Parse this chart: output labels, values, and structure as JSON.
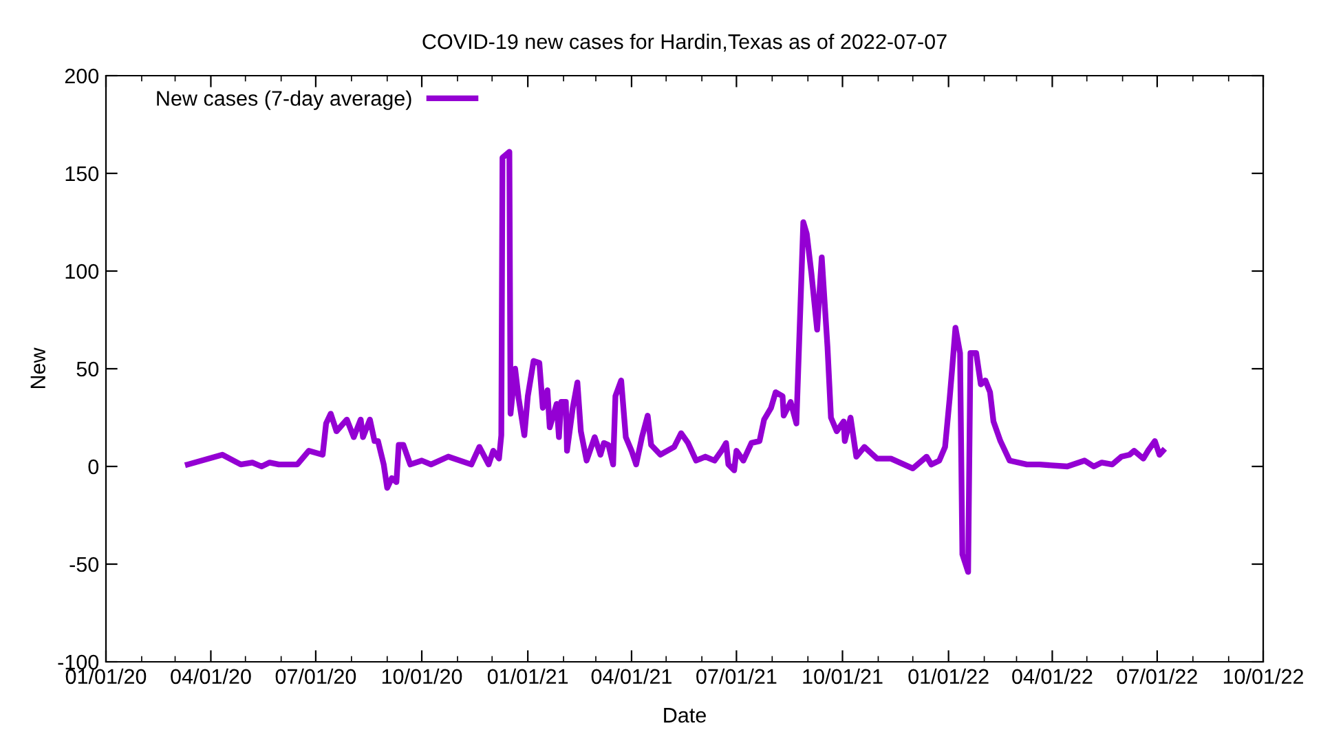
{
  "chart_data": {
    "type": "line",
    "title": "COVID-19 new cases for Hardin,Texas as of 2022-07-07",
    "xlabel": "Date",
    "ylabel": "New",
    "x": [
      "2020-03-12",
      "2020-04-11",
      "2020-04-27",
      "2020-05-07",
      "2020-05-15",
      "2020-05-22",
      "2020-05-30",
      "2020-06-15",
      "2020-06-25",
      "2020-07-07",
      "2020-07-10",
      "2020-07-14",
      "2020-07-19",
      "2020-07-28",
      "2020-08-03",
      "2020-08-09",
      "2020-08-11",
      "2020-08-17",
      "2020-08-21",
      "2020-08-24",
      "2020-08-29",
      "2020-09-01",
      "2020-09-05",
      "2020-09-09",
      "2020-09-11",
      "2020-09-15",
      "2020-09-21",
      "2020-10-01",
      "2020-10-09",
      "2020-10-24",
      "2020-11-13",
      "2020-11-20",
      "2020-11-28",
      "2020-12-02",
      "2020-12-07",
      "2020-12-09",
      "2020-12-10",
      "2020-12-16",
      "2020-12-17",
      "2020-12-21",
      "2020-12-24",
      "2020-12-29",
      "2021-01-01",
      "2021-01-06",
      "2021-01-11",
      "2021-01-14",
      "2021-01-18",
      "2021-01-20",
      "2021-01-26",
      "2021-01-28",
      "2021-01-30",
      "2021-02-03",
      "2021-02-04",
      "2021-02-09",
      "2021-02-13",
      "2021-02-16",
      "2021-02-21",
      "2021-02-28",
      "2021-03-05",
      "2021-03-08",
      "2021-03-12",
      "2021-03-16",
      "2021-03-18",
      "2021-03-23",
      "2021-03-27",
      "2021-04-01",
      "2021-04-05",
      "2021-04-10",
      "2021-04-15",
      "2021-04-18",
      "2021-04-26",
      "2021-05-08",
      "2021-05-14",
      "2021-05-20",
      "2021-05-27",
      "2021-06-04",
      "2021-06-12",
      "2021-06-18",
      "2021-06-22",
      "2021-06-24",
      "2021-06-29",
      "2021-07-01",
      "2021-07-07",
      "2021-07-14",
      "2021-07-21",
      "2021-07-25",
      "2021-07-31",
      "2021-08-04",
      "2021-08-10",
      "2021-08-11",
      "2021-08-17",
      "2021-08-22",
      "2021-08-28",
      "2021-08-31",
      "2021-09-04",
      "2021-09-09",
      "2021-09-13",
      "2021-09-18",
      "2021-09-21",
      "2021-09-26",
      "2021-10-02",
      "2021-10-03",
      "2021-10-08",
      "2021-10-13",
      "2021-10-20",
      "2021-10-31",
      "2021-11-12",
      "2021-12-01",
      "2021-12-13",
      "2021-12-17",
      "2021-12-24",
      "2021-12-29",
      "2022-01-02",
      "2022-01-04",
      "2022-01-07",
      "2022-01-11",
      "2022-01-13",
      "2022-01-18",
      "2022-01-20",
      "2022-01-25",
      "2022-01-29",
      "2022-02-02",
      "2022-02-06",
      "2022-02-09",
      "2022-02-15",
      "2022-02-23",
      "2022-03-10",
      "2022-03-21",
      "2022-04-14",
      "2022-04-29",
      "2022-05-07",
      "2022-05-14",
      "2022-05-23",
      "2022-05-31",
      "2022-06-07",
      "2022-06-11",
      "2022-06-19",
      "2022-06-23",
      "2022-06-29",
      "2022-07-03",
      "2022-07-06"
    ],
    "series": [
      {
        "name": "New cases (7-day average)",
        "color": "#9400d3",
        "values": [
          1,
          6,
          1,
          2,
          0,
          2,
          1,
          1,
          8,
          6,
          22,
          27,
          18,
          24,
          15,
          24,
          15,
          24,
          13,
          13,
          1,
          -11,
          -6,
          -8,
          11,
          11,
          1,
          3,
          1,
          5,
          1,
          10,
          1,
          8,
          4,
          16,
          158,
          161,
          27,
          50,
          35,
          16,
          36,
          54,
          53,
          30,
          39,
          20,
          32,
          15,
          33,
          33,
          8,
          30,
          43,
          18,
          3,
          15,
          6,
          12,
          11,
          1,
          36,
          44,
          15,
          8,
          1,
          15,
          26,
          11,
          6,
          10,
          17,
          12,
          3,
          5,
          3,
          8,
          12,
          1,
          -2,
          8,
          3,
          12,
          13,
          24,
          30,
          38,
          36,
          26,
          33,
          22,
          125,
          119,
          99,
          70,
          107,
          61,
          25,
          18,
          23,
          13,
          25,
          5,
          10,
          4,
          4,
          -1,
          5,
          1,
          3,
          10,
          35,
          49,
          71,
          58,
          -45,
          -54,
          58,
          58,
          42,
          44,
          38,
          23,
          13,
          3,
          1,
          1,
          0,
          3,
          0,
          2,
          1,
          5,
          6,
          8,
          4,
          8,
          13,
          6,
          8
        ]
      }
    ],
    "xlim": [
      "2020-01-01",
      "2022-10-01"
    ],
    "xticks": [
      {
        "value": "2020-01-01",
        "label": "01/01/20"
      },
      {
        "value": "2020-04-01",
        "label": "04/01/20"
      },
      {
        "value": "2020-07-01",
        "label": "07/01/20"
      },
      {
        "value": "2020-10-01",
        "label": "10/01/20"
      },
      {
        "value": "2021-01-01",
        "label": "01/01/21"
      },
      {
        "value": "2021-04-01",
        "label": "04/01/21"
      },
      {
        "value": "2021-07-01",
        "label": "07/01/21"
      },
      {
        "value": "2021-10-01",
        "label": "10/01/21"
      },
      {
        "value": "2022-01-01",
        "label": "01/01/22"
      },
      {
        "value": "2022-04-01",
        "label": "04/01/22"
      },
      {
        "value": "2022-07-01",
        "label": "07/01/22"
      },
      {
        "value": "2022-10-01",
        "label": "10/01/22"
      }
    ],
    "ylim": [
      -100,
      200
    ],
    "yticks": [
      -100,
      -50,
      0,
      50,
      100,
      150,
      200
    ],
    "legend": "top left",
    "grid": false,
    "marker": "none",
    "line_style": "solid"
  }
}
